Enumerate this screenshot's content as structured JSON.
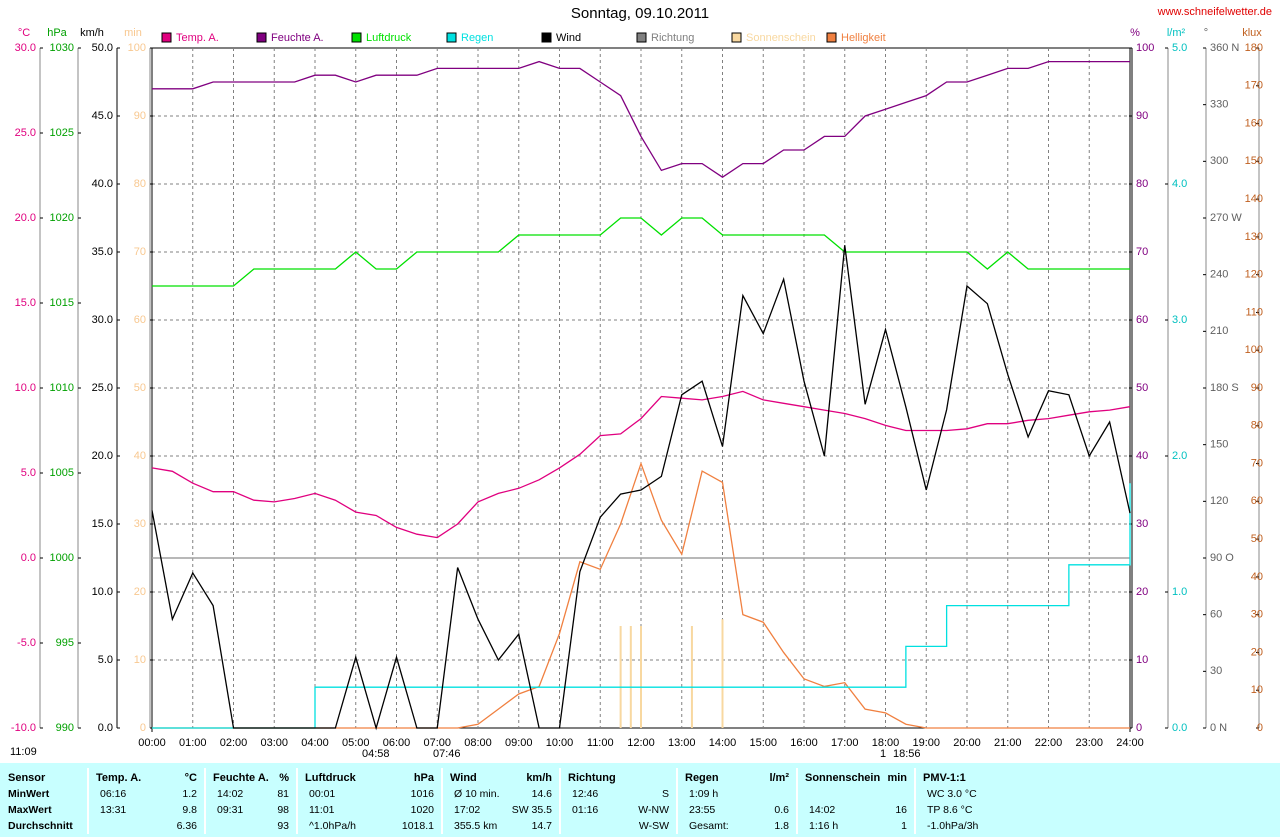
{
  "chart_data": {
    "type": "line",
    "title": "Sonntag, 09.10.2011",
    "source": "www.schneifelwetter.de",
    "x": [
      0,
      0.5,
      1,
      1.5,
      2,
      2.5,
      3,
      3.5,
      4,
      4.5,
      5,
      5.5,
      6,
      6.5,
      7,
      7.5,
      8,
      8.5,
      9,
      9.5,
      10,
      10.5,
      11,
      11.5,
      12,
      12.5,
      13,
      13.5,
      14,
      14.5,
      15,
      15.5,
      16,
      16.5,
      17,
      17.5,
      18,
      18.5,
      19,
      19.5,
      20,
      20.5,
      21,
      21.5,
      22,
      22.5,
      23,
      23.5,
      24
    ],
    "xlim": [
      0,
      24
    ],
    "xticks": [
      {
        "value": 0,
        "label": "00:00"
      },
      {
        "value": 1,
        "label": "01:00"
      },
      {
        "value": 2,
        "label": "02:00"
      },
      {
        "value": 3,
        "label": "03:00"
      },
      {
        "value": 4,
        "label": "04:00"
      },
      {
        "value": 5,
        "label": "05:00"
      },
      {
        "value": 6,
        "label": "06:00"
      },
      {
        "value": 7,
        "label": "07:00"
      },
      {
        "value": 8,
        "label": "08:00"
      },
      {
        "value": 9,
        "label": "09:00"
      },
      {
        "value": 10,
        "label": "10:00"
      },
      {
        "value": 11,
        "label": "11:00"
      },
      {
        "value": 12,
        "label": "12:00"
      },
      {
        "value": 13,
        "label": "13:00"
      },
      {
        "value": 14,
        "label": "14:00"
      },
      {
        "value": 15,
        "label": "15:00"
      },
      {
        "value": 16,
        "label": "16:00"
      },
      {
        "value": 17,
        "label": "17:00"
      },
      {
        "value": 18,
        "label": "18:00"
      },
      {
        "value": 19,
        "label": "19:00"
      },
      {
        "value": 20,
        "label": "20:00"
      },
      {
        "value": 21,
        "label": "21:00"
      },
      {
        "value": 22,
        "label": "22:00"
      },
      {
        "value": 23,
        "label": "23:00"
      },
      {
        "value": 24,
        "label": "24:00"
      }
    ],
    "axes": [
      {
        "unit": "°C",
        "color": "#e0007f",
        "side": "left",
        "lim": [
          -10,
          30
        ],
        "ticks": [
          {
            "value": -10,
            "label": "-10.0"
          },
          {
            "value": -5,
            "label": "-5.0"
          },
          {
            "value": 0,
            "label": "0.0"
          },
          {
            "value": 5,
            "label": "5.0"
          },
          {
            "value": 10,
            "label": "10.0"
          },
          {
            "value": 15,
            "label": "15.0"
          },
          {
            "value": 20,
            "label": "20.0"
          },
          {
            "value": 25,
            "label": "25.0"
          },
          {
            "value": 30,
            "label": "30.0"
          }
        ]
      },
      {
        "unit": "hPa",
        "color": "#00a000",
        "side": "left",
        "lim": [
          990,
          1030
        ],
        "ticks": [
          990,
          995,
          1000,
          1005,
          1010,
          1015,
          1020,
          1025,
          1030
        ]
      },
      {
        "unit": "km/h",
        "color": "#000000",
        "side": "left",
        "lim": [
          0,
          50
        ],
        "ticks": [
          {
            "value": 0,
            "label": "0.0"
          },
          {
            "value": 5,
            "label": "5.0"
          },
          {
            "value": 10,
            "label": "10.0"
          },
          {
            "value": 15,
            "label": "15.0"
          },
          {
            "value": 20,
            "label": "20.0"
          },
          {
            "value": 25,
            "label": "25.0"
          },
          {
            "value": 30,
            "label": "30.0"
          },
          {
            "value": 35,
            "label": "35.0"
          },
          {
            "value": 40,
            "label": "40.0"
          },
          {
            "value": 45,
            "label": "45.0"
          },
          {
            "value": 50,
            "label": "50.0"
          }
        ]
      },
      {
        "unit": "min",
        "color": "#f8c890",
        "side": "left",
        "lim": [
          0,
          100
        ],
        "ticks": [
          0,
          10,
          20,
          30,
          40,
          50,
          60,
          70,
          80,
          90,
          100
        ]
      },
      {
        "unit": "%",
        "color": "#800080",
        "side": "right",
        "lim": [
          0,
          100
        ],
        "ticks": [
          0,
          10,
          20,
          30,
          40,
          50,
          60,
          70,
          80,
          90,
          100
        ]
      },
      {
        "unit": "l/m²",
        "color": "#00c0c0",
        "side": "right",
        "lim": [
          0,
          5
        ],
        "ticks": [
          {
            "value": 0,
            "label": "0.0"
          },
          {
            "value": 1,
            "label": "1.0"
          },
          {
            "value": 2,
            "label": "2.0"
          },
          {
            "value": 3,
            "label": "3.0"
          },
          {
            "value": 4,
            "label": "4.0"
          },
          {
            "value": 5,
            "label": "5.0"
          }
        ]
      },
      {
        "unit": "°",
        "color": "#606060",
        "side": "right",
        "lim": [
          0,
          360
        ],
        "ticks": [
          {
            "value": 0,
            "label": "0 N"
          },
          30,
          60,
          {
            "value": 90,
            "label": "90 O"
          },
          120,
          150,
          {
            "value": 180,
            "label": "180 S"
          },
          210,
          240,
          {
            "value": 270,
            "label": "270 W"
          },
          300,
          330,
          {
            "value": 360,
            "label": "360 N"
          }
        ]
      },
      {
        "unit": "klux",
        "color": "#c06020",
        "side": "right",
        "lim": [
          0,
          180
        ],
        "ticks": [
          0,
          10,
          20,
          30,
          40,
          50,
          60,
          70,
          80,
          90,
          100,
          110,
          120,
          130,
          140,
          150,
          160,
          170,
          180
        ]
      }
    ],
    "legend": [
      {
        "name": "Temp. A.",
        "color": "#e0007f"
      },
      {
        "name": "Feuchte A.",
        "color": "#800080"
      },
      {
        "name": "Luftdruck",
        "color": "#00e000"
      },
      {
        "name": "Regen",
        "color": "#00e0e0"
      },
      {
        "name": "Wind",
        "color": "#000000"
      },
      {
        "name": "Richtung",
        "color": "#808080"
      },
      {
        "name": "Sonnenschein",
        "color": "#f8d8a0"
      },
      {
        "name": "Helligkeit",
        "color": "#f08040"
      }
    ],
    "series": [
      {
        "name": "Helligkeit",
        "color": "#f08040",
        "axis": 7,
        "values": [
          0,
          0,
          0,
          0,
          0,
          0,
          0,
          0,
          0,
          0,
          0,
          0,
          0,
          0,
          0,
          0,
          1,
          5,
          9,
          11,
          25,
          44,
          42,
          54,
          70,
          55,
          46,
          68,
          65,
          30,
          28,
          20,
          13,
          11,
          12,
          5,
          4,
          1,
          0,
          0,
          0,
          0,
          0,
          0,
          0,
          0,
          0,
          0,
          0
        ]
      },
      {
        "name": "Regen",
        "color": "#00e0e0",
        "axis": 5,
        "step": true,
        "values": [
          0,
          0,
          0,
          0,
          0,
          0,
          0,
          0,
          0.3,
          0.3,
          0.3,
          0.3,
          0.3,
          0.3,
          0.3,
          0.3,
          0.3,
          0.3,
          0.3,
          0.3,
          0.3,
          0.3,
          0.3,
          0.3,
          0.3,
          0.3,
          0.3,
          0.3,
          0.3,
          0.3,
          0.3,
          0.3,
          0.3,
          0.3,
          0.3,
          0.3,
          0.3,
          0.6,
          0.6,
          0.9,
          0.9,
          0.9,
          0.9,
          0.9,
          0.9,
          1.2,
          1.2,
          1.2,
          1.8
        ]
      },
      {
        "name": "Luftdruck",
        "color": "#00e000",
        "axis": 1,
        "values": [
          1016,
          1016,
          1016,
          1016,
          1016,
          1017,
          1017,
          1017,
          1017,
          1017,
          1018,
          1017,
          1017,
          1018,
          1018,
          1018,
          1018,
          1018,
          1019,
          1019,
          1019,
          1019,
          1019,
          1020,
          1020,
          1019,
          1020,
          1020,
          1019,
          1019,
          1019,
          1019,
          1019,
          1019,
          1018,
          1018,
          1018,
          1018,
          1018,
          1018,
          1018,
          1017,
          1018,
          1017,
          1017,
          1017,
          1017,
          1017,
          1017
        ]
      },
      {
        "name": "Temp. A.",
        "color": "#e0007f",
        "axis": 0,
        "values": [
          5.3,
          5.1,
          4.4,
          3.9,
          3.9,
          3.4,
          3.3,
          3.5,
          3.8,
          3.4,
          2.7,
          2.5,
          1.8,
          1.4,
          1.2,
          2.0,
          3.3,
          3.8,
          4.1,
          4.6,
          5.3,
          6.1,
          7.2,
          7.3,
          8.2,
          9.5,
          9.4,
          9.3,
          9.5,
          9.8,
          9.3,
          9.1,
          8.9,
          8.7,
          8.5,
          8.2,
          7.8,
          7.5,
          7.5,
          7.5,
          7.6,
          7.9,
          7.9,
          8.1,
          8.2,
          8.4,
          8.6,
          8.7,
          8.9
        ]
      },
      {
        "name": "Feuchte A.",
        "color": "#800080",
        "axis": 4,
        "values": [
          94,
          94,
          94,
          95,
          95,
          95,
          95,
          95,
          96,
          96,
          95,
          96,
          96,
          96,
          97,
          97,
          97,
          97,
          97,
          98,
          97,
          97,
          95,
          93,
          87,
          82,
          83,
          83,
          81,
          83,
          83,
          85,
          85,
          87,
          87,
          90,
          91,
          92,
          93,
          95,
          95,
          96,
          97,
          97,
          98,
          98,
          98,
          98,
          98
        ]
      },
      {
        "name": "Wind",
        "color": "#000000",
        "axis": 2,
        "values": [
          16,
          8,
          11.4,
          9,
          0,
          0,
          0,
          0,
          0,
          0,
          5.2,
          0,
          5.2,
          0,
          0,
          11.8,
          8,
          5,
          6.9,
          0,
          0,
          11.5,
          15.5,
          17.2,
          17.5,
          18.5,
          24.5,
          25.5,
          20.7,
          31.8,
          29,
          33,
          25.5,
          20,
          35.5,
          23.8,
          29.3,
          23.6,
          17.5,
          23.4,
          32.5,
          31.2,
          26,
          21.4,
          24.8,
          24.5,
          20,
          22.5,
          15.8
        ]
      }
    ],
    "sunshine": {
      "name": "Sonnenschein",
      "color": "#f8d8a0",
      "axis": 3,
      "x": [
        11.5,
        11.75,
        12.0,
        13.25,
        14.0
      ],
      "values": [
        15,
        15,
        15,
        15,
        16
      ]
    },
    "annotations": [
      "11:09",
      "04:58",
      "07:46",
      "1",
      "18:56"
    ]
  },
  "table": [
    {
      "header": "Sensor",
      "rows": [
        {
          "left": "MinWert"
        },
        {
          "left": "MaxWert"
        },
        {
          "left": "Durchschnitt"
        }
      ]
    },
    {
      "header": "Temp. A.",
      "unit": "°C",
      "rows": [
        {
          "left": "06:16",
          "right": "1.2"
        },
        {
          "left": "13:31",
          "right": "9.8"
        },
        {
          "right": "6.36"
        }
      ]
    },
    {
      "header": "Feuchte A.",
      "unit": "%",
      "rows": [
        {
          "left": "14:02",
          "right": "81"
        },
        {
          "left": "09:31",
          "right": "98"
        },
        {
          "right": "93"
        }
      ]
    },
    {
      "header": "Luftdruck",
      "unit": "hPa",
      "rows": [
        {
          "left": "00:01",
          "right": "1016"
        },
        {
          "left": "11:01",
          "right": "1020"
        },
        {
          "left": "^1.0hPa/h",
          "right": "1018.1"
        }
      ]
    },
    {
      "header": "Wind",
      "unit": "km/h",
      "rows": [
        {
          "left": "Ø 10 min.",
          "right": "14.6"
        },
        {
          "left": "17:02",
          "right": "SW 35.5"
        },
        {
          "left": "355.5 km",
          "right": "14.7"
        }
      ]
    },
    {
      "header": "Richtung",
      "rows": [
        {
          "left": "12:46",
          "right": "S"
        },
        {
          "left": "01:16",
          "right": "W-NW"
        },
        {
          "right": "W-SW"
        }
      ]
    },
    {
      "header": "Regen",
      "unit": "l/m²",
      "rows": [
        {
          "left": "1:09 h"
        },
        {
          "left": "23:55",
          "right": "0.6"
        },
        {
          "left": "Gesamt:",
          "right": "1.8"
        }
      ]
    },
    {
      "header": "Sonnenschein",
      "unit": "min",
      "rows": [
        {},
        {
          "left": "14:02",
          "right": "16"
        },
        {
          "left": "1:16 h",
          "right": "1"
        }
      ]
    },
    {
      "header": "PMV-1:1",
      "rows": [
        {
          "left": "WC 3.0 °C"
        },
        {
          "left": "TP 8.6 °C"
        },
        {
          "left": "-1.0hPa/3h"
        }
      ]
    }
  ]
}
